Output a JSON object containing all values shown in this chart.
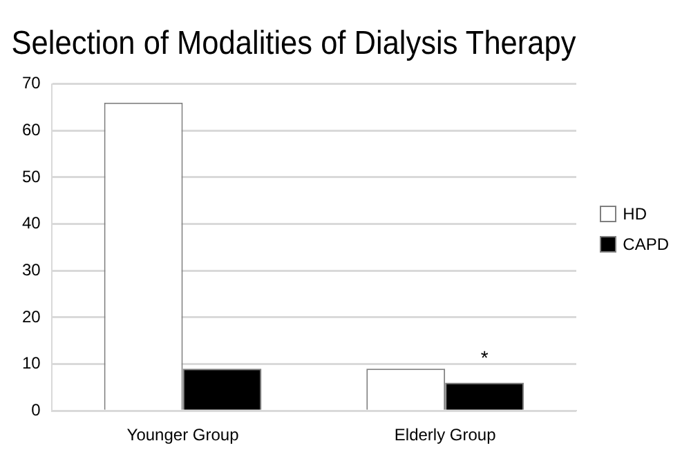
{
  "chart_data": {
    "type": "bar",
    "title": "Selection of Modalities of Dialysis Therapy",
    "categories": [
      "Younger Group",
      "Elderly Group"
    ],
    "series": [
      {
        "name": "HD",
        "color": "#ffffff",
        "values": [
          66,
          9
        ]
      },
      {
        "name": "CAPD",
        "color": "#000000",
        "values": [
          9,
          6
        ]
      }
    ],
    "ylim": [
      0,
      70
    ],
    "yticks": [
      0,
      10,
      20,
      30,
      40,
      50,
      60,
      70
    ],
    "grid": "y",
    "legend": "right",
    "annotations": [
      {
        "text": "*",
        "x": "Elderly Group",
        "y": 6
      }
    ]
  }
}
